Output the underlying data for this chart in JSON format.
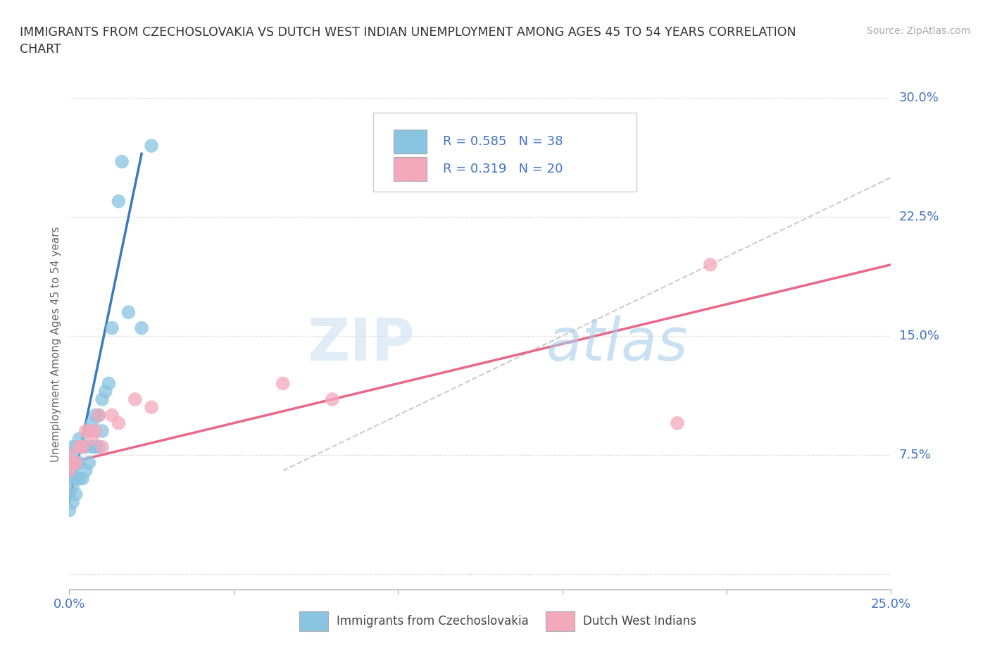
{
  "title": "IMMIGRANTS FROM CZECHOSLOVAKIA VS DUTCH WEST INDIAN UNEMPLOYMENT AMONG AGES 45 TO 54 YEARS CORRELATION\nCHART",
  "source": "Source: ZipAtlas.com",
  "ylabel": "Unemployment Among Ages 45 to 54 years",
  "xlim": [
    0.0,
    0.25
  ],
  "ylim": [
    -0.01,
    0.3
  ],
  "xticks": [
    0.0,
    0.05,
    0.1,
    0.15,
    0.2,
    0.25
  ],
  "xticklabels": [
    "0.0%",
    "",
    "",
    "",
    "",
    "25.0%"
  ],
  "yticks": [
    0.0,
    0.075,
    0.15,
    0.225,
    0.3
  ],
  "yticklabels": [
    "",
    "7.5%",
    "15.0%",
    "22.5%",
    "30.0%"
  ],
  "blue_color": "#89c4e1",
  "pink_color": "#f4a8bc",
  "blue_line_color": "#3a7abf",
  "pink_line_color": "#e8688a",
  "diagonal_color": "#cccccc",
  "watermark_zip": "ZIP",
  "watermark_atlas": "atlas",
  "legend_text1": "R = 0.585   N = 38",
  "legend_text2": "R = 0.319   N = 20",
  "blue_scatter_x": [
    0.0,
    0.0,
    0.0,
    0.0,
    0.001,
    0.001,
    0.001,
    0.001,
    0.001,
    0.002,
    0.002,
    0.002,
    0.002,
    0.003,
    0.003,
    0.003,
    0.004,
    0.004,
    0.005,
    0.005,
    0.006,
    0.006,
    0.007,
    0.007,
    0.008,
    0.008,
    0.009,
    0.009,
    0.01,
    0.01,
    0.011,
    0.012,
    0.013,
    0.015,
    0.016,
    0.018,
    0.022,
    0.025
  ],
  "blue_scatter_y": [
    0.05,
    0.04,
    0.06,
    0.07,
    0.045,
    0.055,
    0.065,
    0.075,
    0.08,
    0.05,
    0.06,
    0.07,
    0.08,
    0.06,
    0.07,
    0.085,
    0.06,
    0.08,
    0.065,
    0.08,
    0.07,
    0.09,
    0.08,
    0.095,
    0.08,
    0.1,
    0.08,
    0.1,
    0.09,
    0.11,
    0.115,
    0.12,
    0.155,
    0.235,
    0.26,
    0.165,
    0.155,
    0.27
  ],
  "pink_scatter_x": [
    0.0,
    0.0,
    0.001,
    0.002,
    0.003,
    0.004,
    0.005,
    0.006,
    0.007,
    0.008,
    0.009,
    0.01,
    0.013,
    0.015,
    0.02,
    0.025,
    0.065,
    0.08,
    0.185,
    0.195
  ],
  "pink_scatter_y": [
    0.065,
    0.075,
    0.07,
    0.07,
    0.08,
    0.08,
    0.09,
    0.09,
    0.085,
    0.09,
    0.1,
    0.08,
    0.1,
    0.095,
    0.11,
    0.105,
    0.12,
    0.11,
    0.095,
    0.195
  ],
  "blue_line_x": [
    0.0,
    0.022
  ],
  "blue_line_y": [
    0.045,
    0.265
  ],
  "pink_line_x": [
    0.0,
    0.25
  ],
  "pink_line_y": [
    0.07,
    0.195
  ],
  "diag_line_x": [
    0.065,
    0.25
  ],
  "diag_line_y": [
    0.065,
    0.25
  ]
}
